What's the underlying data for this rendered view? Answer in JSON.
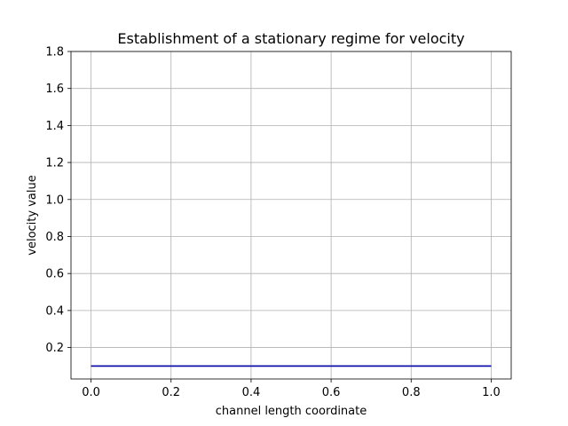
{
  "chart_data": {
    "type": "line",
    "title": "Establishment of a stationary regime for velocity",
    "xlabel": "channel length coordinate",
    "ylabel": "velocity value",
    "xlim": [
      -0.05,
      1.05
    ],
    "ylim": [
      0.03,
      1.8
    ],
    "xticks": [
      0.0,
      0.2,
      0.4,
      0.6,
      0.8,
      1.0
    ],
    "xtick_labels": [
      "0.0",
      "0.2",
      "0.4",
      "0.6",
      "0.8",
      "1.0"
    ],
    "yticks": [
      0.2,
      0.4,
      0.6,
      0.8,
      1.0,
      1.2,
      1.4,
      1.6,
      1.8
    ],
    "ytick_labels": [
      "0.2",
      "0.4",
      "0.6",
      "0.8",
      "1.0",
      "1.2",
      "1.4",
      "1.6",
      "1.8"
    ],
    "grid": true,
    "series": [
      {
        "color": "#0000aa",
        "x": [
          0.0,
          0.2,
          0.4,
          0.6,
          0.8,
          1.0
        ],
        "y": [
          0.1,
          0.1,
          0.1,
          0.1,
          0.1,
          0.1
        ]
      }
    ]
  }
}
